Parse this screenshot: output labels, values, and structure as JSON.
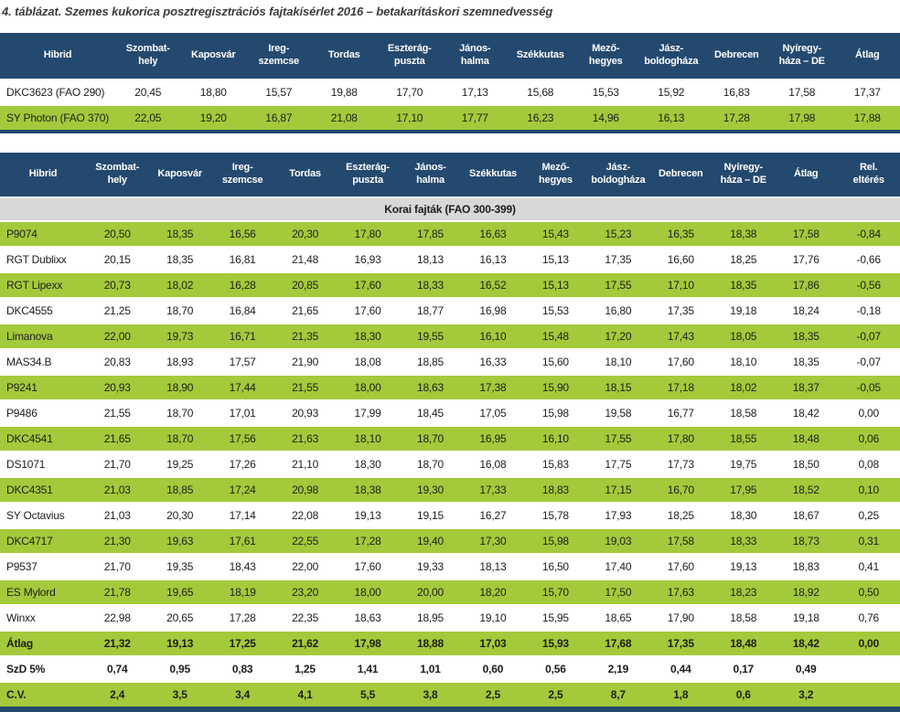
{
  "title": "4. táblázat. Szemes kukorica posztregisztrációs fajtakísérlet 2016 – betakarításkori szemnedvesség",
  "palette": {
    "header_navy": "#24496f",
    "row_green": "#a3ca3b",
    "section_gray": "#d8d8d8",
    "text_dark": "#1d1d1b"
  },
  "table1": {
    "columns": [
      "Hibrid",
      "Szombat-\nhely",
      "Kaposvár",
      "Ireg-\nszemcse",
      "Tordas",
      "Eszterág-\npuszta",
      "János-\nhalma",
      "Székkutas",
      "Mező-\nhegyes",
      "Jász-\nboldogháza",
      "Debrecen",
      "Nyíregy-\nháza – DE",
      "Átlag"
    ],
    "rows": [
      {
        "label": "DKC3623 (FAO 290)",
        "green": false,
        "bold": false,
        "values": [
          "20,45",
          "18,80",
          "15,57",
          "19,88",
          "17,70",
          "17,13",
          "15,68",
          "15,53",
          "15,92",
          "16,83",
          "17,58",
          "17,37"
        ]
      },
      {
        "label": "SY Photon (FAO 370)",
        "green": true,
        "bold": false,
        "values": [
          "22,05",
          "19,20",
          "16,87",
          "21,08",
          "17,10",
          "17,77",
          "16,23",
          "14,96",
          "16,13",
          "17,28",
          "17,98",
          "17,88"
        ]
      }
    ]
  },
  "table2": {
    "columns": [
      "Hibrid",
      "Szombat-\nhely",
      "Kaposvár",
      "Ireg-\nszemcse",
      "Tordas",
      "Eszterág-\npuszta",
      "János-\nhalma",
      "Székkutas",
      "Mező-\nhegyes",
      "Jász-\nboldogháza",
      "Debrecen",
      "Nyíregy-\nháza – DE",
      "Átlag",
      "Rel.\neltérés"
    ],
    "section_label": "Korai fajták (FAO 300-399)",
    "rows": [
      {
        "label": "P9074",
        "green": true,
        "bold": false,
        "values": [
          "20,50",
          "18,35",
          "16,56",
          "20,30",
          "17,80",
          "17,85",
          "16,63",
          "15,43",
          "15,23",
          "16,35",
          "18,38",
          "17,58",
          "-0,84"
        ]
      },
      {
        "label": "RGT Dublixx",
        "green": false,
        "bold": false,
        "values": [
          "20,15",
          "18,35",
          "16,81",
          "21,48",
          "16,93",
          "18,13",
          "16,13",
          "15,13",
          "17,35",
          "16,60",
          "18,25",
          "17,76",
          "-0,66"
        ]
      },
      {
        "label": "RGT Lipexx",
        "green": true,
        "bold": false,
        "values": [
          "20,73",
          "18,02",
          "16,28",
          "20,85",
          "17,60",
          "18,33",
          "16,52",
          "15,13",
          "17,55",
          "17,10",
          "18,35",
          "17,86",
          "-0,56"
        ]
      },
      {
        "label": "DKC4555",
        "green": false,
        "bold": false,
        "values": [
          "21,25",
          "18,70",
          "16,84",
          "21,65",
          "17,60",
          "18,77",
          "16,98",
          "15,53",
          "16,80",
          "17,35",
          "19,18",
          "18,24",
          "-0,18"
        ]
      },
      {
        "label": "Limanova",
        "green": true,
        "bold": false,
        "values": [
          "22,00",
          "19,73",
          "16,71",
          "21,35",
          "18,30",
          "19,55",
          "16,10",
          "15,48",
          "17,20",
          "17,43",
          "18,05",
          "18,35",
          "-0,07"
        ]
      },
      {
        "label": "MAS34.B",
        "green": false,
        "bold": false,
        "values": [
          "20,83",
          "18,93",
          "17,57",
          "21,90",
          "18,08",
          "18,85",
          "16,33",
          "15,60",
          "18,10",
          "17,60",
          "18,10",
          "18,35",
          "-0,07"
        ]
      },
      {
        "label": "P9241",
        "green": true,
        "bold": false,
        "values": [
          "20,93",
          "18,90",
          "17,44",
          "21,55",
          "18,00",
          "18,63",
          "17,38",
          "15,90",
          "18,15",
          "17,18",
          "18,02",
          "18,37",
          "-0,05"
        ]
      },
      {
        "label": "P9486",
        "green": false,
        "bold": false,
        "values": [
          "21,55",
          "18,70",
          "17,01",
          "20,93",
          "17,99",
          "18,45",
          "17,05",
          "15,98",
          "19,58",
          "16,77",
          "18,58",
          "18,42",
          "0,00"
        ]
      },
      {
        "label": "DKC4541",
        "green": true,
        "bold": false,
        "values": [
          "21,65",
          "18,70",
          "17,56",
          "21,63",
          "18,10",
          "18,70",
          "16,95",
          "16,10",
          "17,55",
          "17,80",
          "18,55",
          "18,48",
          "0,06"
        ]
      },
      {
        "label": "DS1071",
        "green": false,
        "bold": false,
        "values": [
          "21,70",
          "19,25",
          "17,26",
          "21,10",
          "18,30",
          "18,70",
          "16,08",
          "15,83",
          "17,75",
          "17,73",
          "19,75",
          "18,50",
          "0,08"
        ]
      },
      {
        "label": "DKC4351",
        "green": true,
        "bold": false,
        "values": [
          "21,03",
          "18,85",
          "17,24",
          "20,98",
          "18,38",
          "19,30",
          "17,33",
          "18,83",
          "17,15",
          "16,70",
          "17,95",
          "18,52",
          "0,10"
        ]
      },
      {
        "label": "SY Octavius",
        "green": false,
        "bold": false,
        "values": [
          "21,03",
          "20,30",
          "17,14",
          "22,08",
          "19,13",
          "19,15",
          "16,27",
          "15,78",
          "17,93",
          "18,25",
          "18,30",
          "18,67",
          "0,25"
        ]
      },
      {
        "label": "DKC4717",
        "green": true,
        "bold": false,
        "values": [
          "21,30",
          "19,63",
          "17,61",
          "22,55",
          "17,28",
          "19,40",
          "17,30",
          "15,98",
          "19,03",
          "17,58",
          "18,33",
          "18,73",
          "0,31"
        ]
      },
      {
        "label": "P9537",
        "green": false,
        "bold": false,
        "values": [
          "21,70",
          "19,35",
          "18,43",
          "22,00",
          "17,60",
          "19,33",
          "18,13",
          "16,50",
          "17,40",
          "17,60",
          "19,13",
          "18,83",
          "0,41"
        ]
      },
      {
        "label": "ES Mylord",
        "green": true,
        "bold": false,
        "values": [
          "21,78",
          "19,65",
          "18,19",
          "23,20",
          "18,00",
          "20,00",
          "18,20",
          "15,70",
          "17,50",
          "17,63",
          "18,23",
          "18,92",
          "0,50"
        ]
      },
      {
        "label": "Winxx",
        "green": false,
        "bold": false,
        "values": [
          "22,98",
          "20,65",
          "17,28",
          "22,35",
          "18,63",
          "18,95",
          "19,10",
          "15,95",
          "18,65",
          "17,90",
          "18,58",
          "19,18",
          "0,76"
        ]
      },
      {
        "label": "Átlag",
        "green": true,
        "bold": true,
        "values": [
          "21,32",
          "19,13",
          "17,25",
          "21,62",
          "17,98",
          "18,88",
          "17,03",
          "15,93",
          "17,68",
          "17,35",
          "18,48",
          "18,42",
          "0,00"
        ]
      },
      {
        "label": "SzD 5%",
        "green": false,
        "bold": true,
        "values": [
          "0,74",
          "0,95",
          "0,83",
          "1,25",
          "1,41",
          "1,01",
          "0,60",
          "0,56",
          "2,19",
          "0,44",
          "0,17",
          "0,49",
          ""
        ]
      },
      {
        "label": "C.V.",
        "green": true,
        "bold": true,
        "values": [
          "2,4",
          "3,5",
          "3,4",
          "4,1",
          "5,5",
          "3,8",
          "2,5",
          "2,5",
          "8,7",
          "1,8",
          "0,6",
          "3,2",
          ""
        ]
      }
    ]
  }
}
